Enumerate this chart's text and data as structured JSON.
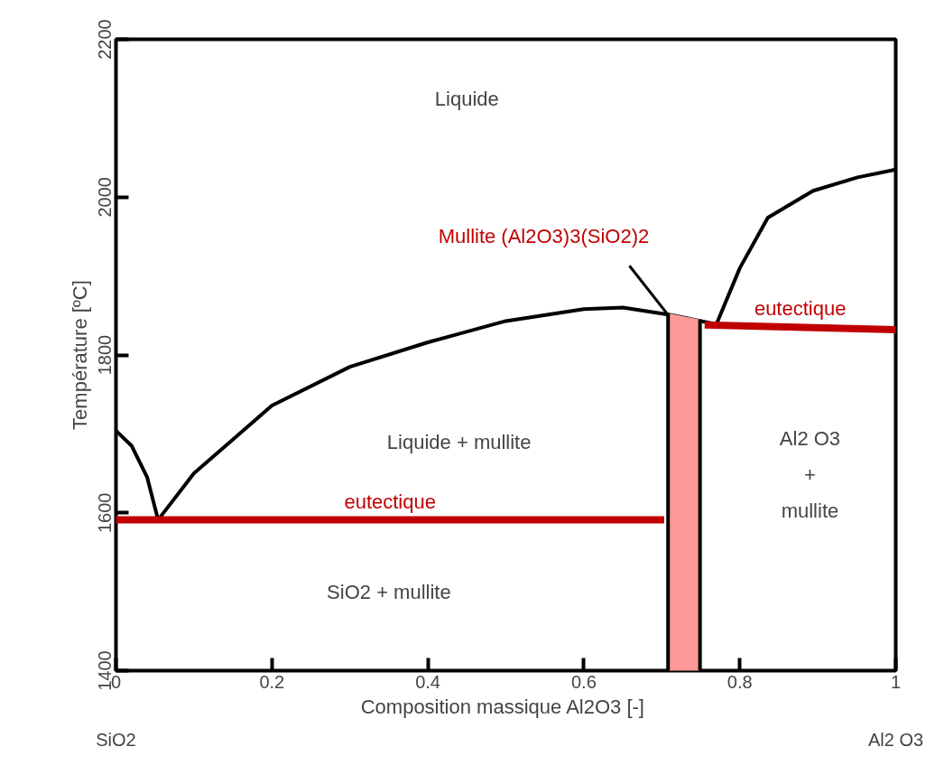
{
  "chart_data": {
    "type": "line",
    "xlabel": "Composition massique Al2O3  [-]",
    "ylabel": "Température [ºC]",
    "xlim": [
      0,
      1
    ],
    "ylim": [
      1400,
      2200
    ],
    "xticks": [
      0,
      0.2,
      0.4,
      0.6,
      0.8,
      1
    ],
    "yticks": [
      1400,
      1600,
      1800,
      2000,
      2200
    ],
    "grid": false,
    "series": [
      {
        "color": "#000000",
        "x": [
          0,
          0.02,
          0.04,
          0.054
        ],
        "values": [
          1704,
          1685,
          1645,
          1591
        ]
      },
      {
        "color": "#000000",
        "x": [
          0.054,
          0.1,
          0.2,
          0.3,
          0.4,
          0.5,
          0.6,
          0.65,
          0.71,
          0.77
        ],
        "values": [
          1591,
          1650,
          1736,
          1785,
          1816,
          1843,
          1858,
          1860,
          1851,
          1839
        ]
      },
      {
        "color": "#000000",
        "x": [
          0.77,
          0.8,
          0.836,
          0.894,
          0.951,
          1
        ],
        "values": [
          1839,
          1910,
          1974,
          2008,
          2025,
          2035
        ]
      },
      {
        "name": "eutectique",
        "color": "#c00000",
        "x": [
          0,
          0.703
        ],
        "values": [
          1591,
          1591
        ]
      },
      {
        "name": "eutectique",
        "color": "#c00000",
        "x": [
          0.755,
          1
        ],
        "values": [
          1838,
          1832
        ]
      },
      {
        "type": "area",
        "color": "#ff9999",
        "x": [
          0.708,
          0.749
        ],
        "values": [
          1853,
          1845
        ]
      },
      {
        "color": "#000000",
        "x": [
          0.708,
          0.708
        ],
        "values": [
          1400,
          1853
        ]
      },
      {
        "color": "#000000",
        "x": [
          0.749,
          0.749
        ],
        "values": [
          1400,
          1845
        ]
      }
    ],
    "annotations": [
      "Liquide",
      "Liquide + mullite",
      "SiO2 + mullite",
      "Al2 O3\n+\nmullite",
      "Mullite (Al2O3)3(SiO2)2",
      "SiO2",
      "Al2 O3"
    ]
  }
}
